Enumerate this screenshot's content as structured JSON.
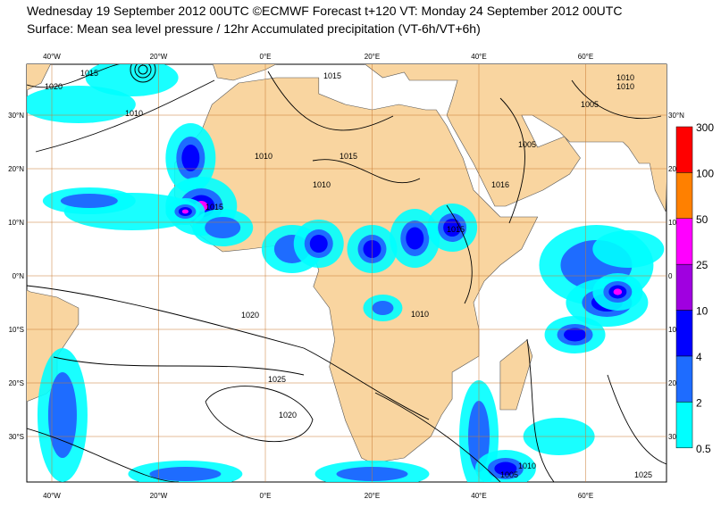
{
  "header": {
    "line1": "Wednesday 19 September 2012 00UTC ©ECMWF Forecast t+120 VT: Monday 24 September 2012 00UTC",
    "line2": "Surface: Mean sea level pressure / 12hr Accumulated precipitation (VT-6h/VT+6h)"
  },
  "map": {
    "lon_labels": [
      "40°W",
      "20°W",
      "0°E",
      "20°E",
      "40°E",
      "60°E"
    ],
    "lat_labels": [
      "30°N",
      "20°N",
      "10°N",
      "0°N",
      "10°S",
      "20°S",
      "30°S"
    ],
    "lat_labels_right": [
      "30°N",
      "20",
      "10",
      "0",
      "10",
      "20",
      "30"
    ],
    "isobar_labels": [
      "1015",
      "1020",
      "1010",
      "1015",
      "1010",
      "1015",
      "1010",
      "1005",
      "1015",
      "1010",
      "1016",
      "1020",
      "1025",
      "1020",
      "1015",
      "1010",
      "1005",
      "1025",
      "1010",
      "1005",
      "1010"
    ]
  },
  "colorbar": {
    "levels": [
      "300",
      "100",
      "50",
      "25",
      "10",
      "4",
      "2",
      "0.5"
    ],
    "colors": [
      "#ff0000",
      "#ff8000",
      "#ff00ff",
      "#a000e0",
      "#0000ff",
      "#1e6cff",
      "#00ffff"
    ]
  }
}
